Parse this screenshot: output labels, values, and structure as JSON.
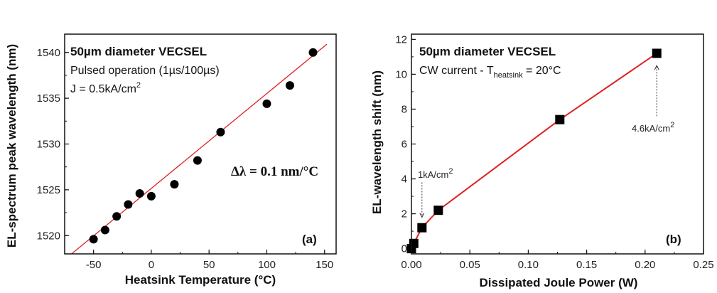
{
  "colors": {
    "fit_line": "#e02020",
    "marker": "#000000",
    "axis": "#111111"
  },
  "chart_data": [
    {
      "type": "scatter",
      "panel_label": "(a)",
      "title": "50µm diameter VECSEL",
      "annotations": {
        "line1": "Pulsed operation (1µs/100µs)",
        "line2_main": "J = 0.5kA/cm",
        "line2_sup": "2",
        "slope": "Δλ = 0.1 nm/°C"
      },
      "xlabel": "Heatsink Temperature (°C)",
      "ylabel": "EL-spectrum peak wavelength (nm)",
      "xlim": [
        -75,
        160
      ],
      "ylim": [
        1518,
        1542
      ],
      "xticks": [
        -50,
        0,
        50,
        100,
        150
      ],
      "yticks": [
        1520,
        1525,
        1530,
        1535,
        1540
      ],
      "x": [
        -50,
        -40,
        -30,
        -20,
        -10,
        0,
        20,
        40,
        60,
        100,
        120,
        140
      ],
      "y": [
        1519.6,
        1520.6,
        1522.1,
        1523.4,
        1524.6,
        1524.3,
        1525.6,
        1528.2,
        1531.3,
        1534.4,
        1536.4,
        1540.0
      ],
      "fit": {
        "x": [
          -70,
          152
        ],
        "y": [
          1517.9,
          1540.9
        ]
      },
      "marker": "circle"
    },
    {
      "type": "line",
      "panel_label": "(b)",
      "title": "50µm diameter VECSEL",
      "annotations": {
        "line1_main": "CW current - T",
        "line1_sub": "heatsink",
        "line1_tail": " = 20°C",
        "low_label": "1kA/cm",
        "low_sup": "2",
        "high_label": "4.6kA/cm",
        "high_sup": "2"
      },
      "xlabel": "Dissipated Joule Power (W)",
      "ylabel": "EL-wavelength shift (nm)",
      "xlim": [
        0,
        0.25
      ],
      "ylim": [
        -0.3,
        12.3
      ],
      "xticks": [
        "0.00",
        "0.05",
        "0.10",
        "0.15",
        "0.20",
        "0.25"
      ],
      "yticks": [
        0,
        2,
        4,
        6,
        8,
        10,
        12
      ],
      "x": [
        0.0,
        0.002,
        0.009,
        0.023,
        0.127,
        0.21
      ],
      "y": [
        0.0,
        0.3,
        1.2,
        2.2,
        7.4,
        11.2
      ],
      "marker": "square"
    }
  ]
}
